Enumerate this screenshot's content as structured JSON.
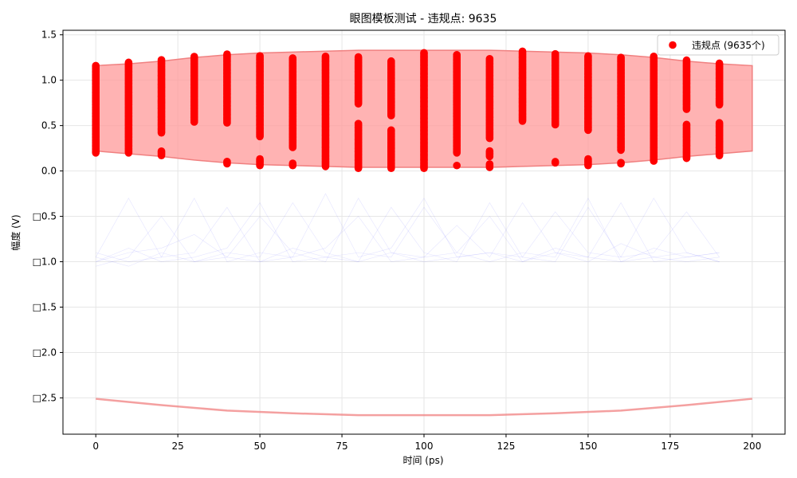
{
  "chart_data": {
    "type": "scatter",
    "title": "眼图模板测试 - 违规点: 9635",
    "xlabel": "时间 (ps)",
    "ylabel": "幅度 (V)",
    "xlim": [
      -10,
      210
    ],
    "ylim": [
      -2.9,
      1.55
    ],
    "x_ticks": [
      0,
      25,
      50,
      75,
      100,
      125,
      150,
      175,
      200
    ],
    "x_tick_labels": [
      "0",
      "25",
      "50",
      "75",
      "100",
      "125",
      "150",
      "175",
      "200"
    ],
    "y_ticks": [
      1.5,
      1.0,
      0.5,
      0.0,
      -0.5,
      -1.0,
      -1.5,
      -2.0,
      -2.5
    ],
    "y_tick_labels": [
      "1.5",
      "1.0",
      "0.5",
      "0.0",
      "□0.5",
      "□1.0",
      "□1.5",
      "□2.0",
      "□2.5"
    ],
    "grid": true,
    "legend": {
      "position": "top-right",
      "entries": [
        {
          "label": "违规点 (9635个)",
          "color": "#ff0000"
        }
      ]
    },
    "colors": {
      "violation": "#ff0000",
      "mask_fill": "#ff9999",
      "mask_edge": "#f08080",
      "traces": "#6a6aff"
    },
    "mask_upper": {
      "x": [
        0,
        10,
        20,
        30,
        40,
        50,
        60,
        70,
        80,
        90,
        100,
        110,
        120,
        130,
        140,
        150,
        160,
        170,
        180,
        190,
        200
      ],
      "top": [
        1.16,
        1.18,
        1.21,
        1.25,
        1.28,
        1.3,
        1.31,
        1.32,
        1.33,
        1.33,
        1.33,
        1.33,
        1.33,
        1.32,
        1.31,
        1.3,
        1.28,
        1.25,
        1.21,
        1.18,
        1.16
      ],
      "bottom": [
        0.22,
        0.19,
        0.16,
        0.12,
        0.09,
        0.07,
        0.06,
        0.05,
        0.04,
        0.04,
        0.04,
        0.04,
        0.04,
        0.05,
        0.06,
        0.07,
        0.09,
        0.12,
        0.16,
        0.19,
        0.22
      ]
    },
    "mask_lower": {
      "x": [
        0,
        20,
        40,
        60,
        80,
        100,
        120,
        140,
        160,
        180,
        200
      ],
      "y": [
        -2.51,
        -2.58,
        -2.64,
        -2.67,
        -2.69,
        -2.69,
        -2.69,
        -2.67,
        -2.64,
        -2.58,
        -2.51
      ]
    },
    "violation_series": {
      "name": "违规点 (9635个)",
      "columns": [
        {
          "x": 0,
          "segments": [
            [
              0.2,
              1.17
            ]
          ]
        },
        {
          "x": 10,
          "segments": [
            [
              0.2,
              1.2
            ]
          ]
        },
        {
          "x": 20,
          "segments": [
            [
              0.17,
              0.22
            ],
            [
              0.42,
              1.23
            ]
          ]
        },
        {
          "x": 30,
          "segments": [
            [
              0.54,
              1.26
            ]
          ]
        },
        {
          "x": 40,
          "segments": [
            [
              0.08,
              0.11
            ],
            [
              0.53,
              1.29
            ]
          ]
        },
        {
          "x": 50,
          "segments": [
            [
              0.06,
              0.14
            ],
            [
              0.38,
              1.27
            ]
          ]
        },
        {
          "x": 60,
          "segments": [
            [
              0.06,
              0.09
            ],
            [
              0.26,
              1.25
            ]
          ]
        },
        {
          "x": 70,
          "segments": [
            [
              0.05,
              1.27
            ]
          ]
        },
        {
          "x": 80,
          "segments": [
            [
              0.03,
              0.53
            ],
            [
              0.74,
              1.26
            ]
          ]
        },
        {
          "x": 90,
          "segments": [
            [
              0.03,
              0.45
            ],
            [
              0.61,
              1.22
            ]
          ]
        },
        {
          "x": 100,
          "segments": [
            [
              0.03,
              1.31
            ]
          ]
        },
        {
          "x": 110,
          "segments": [
            [
              0.06,
              0.07
            ],
            [
              0.2,
              1.28
            ]
          ]
        },
        {
          "x": 120,
          "segments": [
            [
              0.04,
              0.08
            ],
            [
              0.16,
              0.22
            ],
            [
              0.36,
              1.24
            ]
          ]
        },
        {
          "x": 130,
          "segments": [
            [
              0.55,
              1.32
            ]
          ]
        },
        {
          "x": 140,
          "segments": [
            [
              0.09,
              0.11
            ],
            [
              0.51,
              1.29
            ]
          ]
        },
        {
          "x": 150,
          "segments": [
            [
              0.06,
              0.14
            ],
            [
              0.45,
              1.27
            ]
          ]
        },
        {
          "x": 160,
          "segments": [
            [
              0.08,
              0.1
            ],
            [
              0.23,
              1.25
            ]
          ]
        },
        {
          "x": 170,
          "segments": [
            [
              0.11,
              1.27
            ]
          ]
        },
        {
          "x": 180,
          "segments": [
            [
              0.14,
              0.52
            ],
            [
              0.68,
              1.22
            ]
          ]
        },
        {
          "x": 190,
          "segments": [
            [
              0.17,
              0.53
            ],
            [
              0.73,
              1.19
            ]
          ]
        }
      ]
    },
    "trace_series": {
      "name": "",
      "x": [
        0,
        10,
        20,
        30,
        40,
        50,
        60,
        70,
        80,
        90,
        100,
        110,
        120,
        130,
        140,
        150,
        160,
        170,
        180,
        190
      ],
      "levels": [
        [
          -1.0,
          -0.9,
          -0.85,
          -0.7,
          -0.95,
          -0.5,
          -0.9,
          -1.0,
          -0.3,
          -0.9,
          -0.95,
          -0.6,
          -0.95,
          -0.35,
          -0.9,
          -1.0,
          -0.8,
          -0.95,
          -1.0,
          -0.95
        ],
        [
          -0.95,
          -0.3,
          -0.95,
          -0.9,
          -0.4,
          -1.0,
          -0.95,
          -0.25,
          -0.95,
          -0.85,
          -0.3,
          -0.95,
          -0.9,
          -0.95,
          -0.45,
          -0.9,
          -0.95,
          -0.3,
          -0.9,
          -1.0
        ],
        [
          -1.05,
          -0.95,
          -0.5,
          -1.0,
          -0.9,
          -0.95,
          -0.35,
          -0.9,
          -1.0,
          -0.4,
          -0.9,
          -1.0,
          -0.35,
          -0.95,
          -1.0,
          -0.4,
          -0.95,
          -0.9,
          -0.45,
          -0.95
        ],
        [
          -0.9,
          -1.0,
          -0.95,
          -0.3,
          -1.0,
          -0.9,
          -0.95,
          -0.85,
          -0.5,
          -1.0,
          -0.95,
          -0.9,
          -0.5,
          -1.0,
          -0.9,
          -0.95,
          -0.35,
          -1.0,
          -0.95,
          -0.9
        ],
        [
          -1.0,
          -0.85,
          -1.0,
          -0.95,
          -0.85,
          -0.35,
          -1.0,
          -0.95,
          -0.9,
          -0.95,
          -0.4,
          -0.9,
          -1.0,
          -0.9,
          -0.95,
          -0.3,
          -1.0,
          -0.95,
          -0.9,
          -1.0
        ],
        [
          -0.95,
          -1.05,
          -0.9,
          -1.0,
          -0.95,
          -1.0,
          -0.85,
          -0.95,
          -1.0,
          -0.9,
          -1.0,
          -0.95,
          -0.9,
          -1.0,
          -0.85,
          -0.95,
          -1.0,
          -0.85,
          -0.95,
          -0.9
        ]
      ]
    }
  }
}
